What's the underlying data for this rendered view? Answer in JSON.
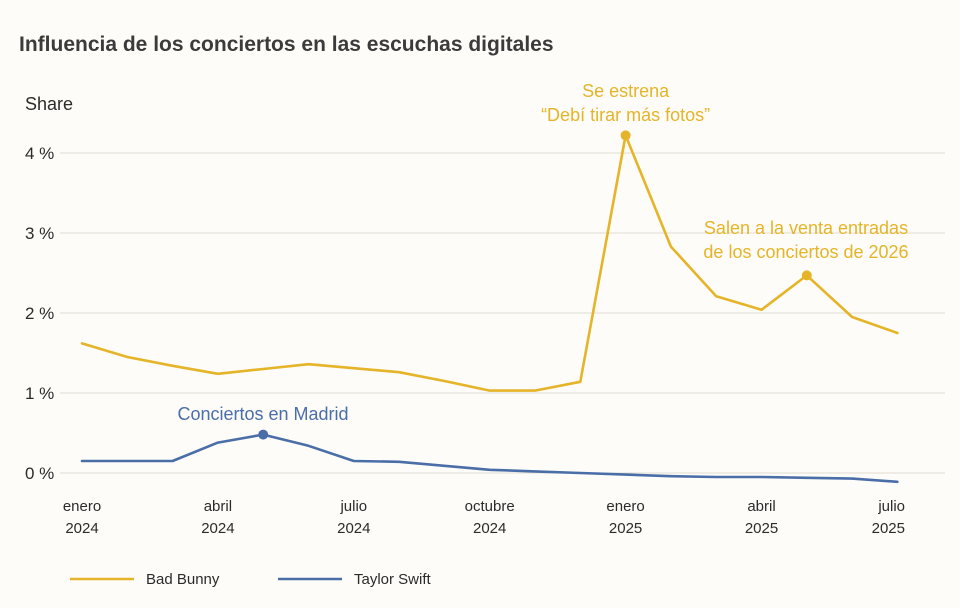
{
  "chart_data": {
    "type": "line",
    "title": "Influencia de los conciertos en las escuchas digitales",
    "ylabel": "Share",
    "ylim": [
      0,
      4.5
    ],
    "yticks": [
      {
        "value": 0,
        "label": "0 %"
      },
      {
        "value": 1,
        "label": "1 %"
      },
      {
        "value": 2,
        "label": "2 %"
      },
      {
        "value": 3,
        "label": "3 %"
      },
      {
        "value": 4,
        "label": "4 %"
      }
    ],
    "x": [
      "2024-01",
      "2024-02",
      "2024-03",
      "2024-04",
      "2024-05",
      "2024-06",
      "2024-07",
      "2024-08",
      "2024-09",
      "2024-10",
      "2024-11",
      "2024-12",
      "2025-01",
      "2025-02",
      "2025-03",
      "2025-04",
      "2025-05",
      "2025-06",
      "2025-07"
    ],
    "xticks": [
      {
        "x": "2024-01",
        "line1": "enero",
        "line2": "2024"
      },
      {
        "x": "2024-04",
        "line1": "abril",
        "line2": "2024"
      },
      {
        "x": "2024-07",
        "line1": "julio",
        "line2": "2024"
      },
      {
        "x": "2024-10",
        "line1": "octubre",
        "line2": "2024"
      },
      {
        "x": "2025-01",
        "line1": "enero",
        "line2": "2025"
      },
      {
        "x": "2025-04",
        "line1": "abril",
        "line2": "2025"
      },
      {
        "x": "2025-07",
        "line1": "julio",
        "line2": "2025"
      }
    ],
    "series": [
      {
        "name": "Bad Bunny",
        "color": "#e5b428",
        "values": [
          1.62,
          1.45,
          1.34,
          1.24,
          1.3,
          1.36,
          1.31,
          1.26,
          1.15,
          1.03,
          1.03,
          1.14,
          4.22,
          2.83,
          2.21,
          2.04,
          2.47,
          1.95,
          1.75
        ]
      },
      {
        "name": "Taylor Swift",
        "color": "#4a6ea8",
        "values": [
          0.15,
          0.15,
          0.15,
          0.38,
          0.48,
          0.34,
          0.15,
          0.14,
          0.09,
          0.04,
          0.02,
          0.0,
          -0.02,
          -0.04,
          -0.05,
          -0.05,
          -0.06,
          -0.07,
          -0.11
        ]
      }
    ],
    "annotations": [
      {
        "series": "Bad Bunny",
        "x": "2025-01",
        "color": "#e5b428",
        "lines": [
          "Se estrena",
          "“Debí tirar más fotos”"
        ]
      },
      {
        "series": "Bad Bunny",
        "x": "2025-05",
        "color": "#e5b428",
        "lines": [
          "Salen a la venta entradas",
          "de los conciertos de 2026"
        ]
      },
      {
        "series": "Taylor Swift",
        "x": "2024-05",
        "color": "#4a6ea8",
        "lines": [
          "Conciertos en Madrid"
        ]
      }
    ],
    "grid": true,
    "legend": "bottom-left"
  }
}
